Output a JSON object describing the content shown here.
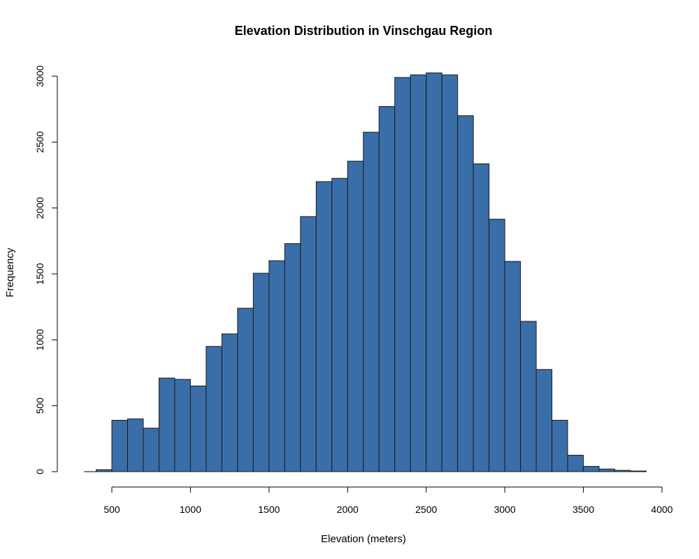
{
  "chart_data": {
    "type": "bar",
    "title": "Elevation Distribution in Vinschgau Region",
    "xlabel": "Elevation (meters)",
    "ylabel": "Frequency",
    "bar_color": "#3A6EA8",
    "bin_width": 100,
    "bin_starts": [
      400,
      500,
      600,
      700,
      800,
      900,
      1000,
      1100,
      1200,
      1300,
      1400,
      1500,
      1600,
      1700,
      1800,
      1900,
      2000,
      2100,
      2200,
      2300,
      2400,
      2500,
      2600,
      2700,
      2800,
      2900,
      3000,
      3100,
      3200,
      3300,
      3400,
      3500,
      3600,
      3700,
      3800
    ],
    "values": [
      15,
      390,
      400,
      330,
      710,
      700,
      650,
      950,
      1045,
      1240,
      1505,
      1600,
      1730,
      1935,
      2200,
      2225,
      2355,
      2575,
      2770,
      2990,
      3010,
      3025,
      3010,
      2700,
      2335,
      1915,
      1595,
      1140,
      775,
      390,
      125,
      40,
      20,
      10,
      5
    ],
    "x_ticks": [
      500,
      1000,
      1500,
      2000,
      2500,
      3000,
      3500,
      4000
    ],
    "y_ticks": [
      0,
      500,
      1000,
      1500,
      2000,
      2500,
      3000
    ],
    "xlim": [
      300,
      4000
    ],
    "ylim": [
      0,
      3000
    ],
    "grid": false,
    "legend": "none"
  }
}
